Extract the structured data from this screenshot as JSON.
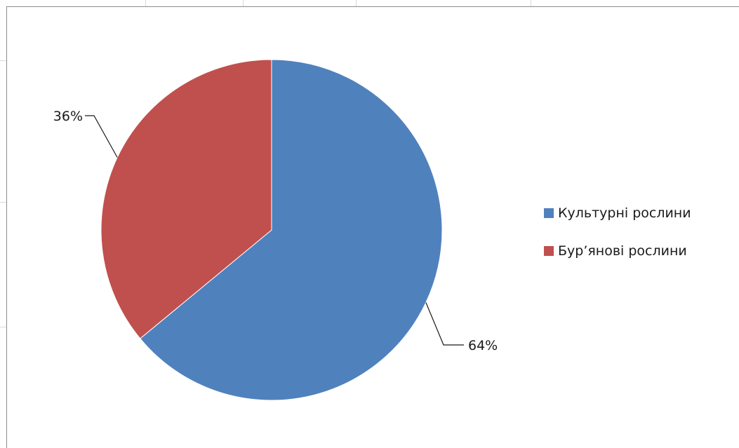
{
  "chart_data": {
    "type": "pie",
    "title": "",
    "categories": [
      "Культурні рослини",
      "Бур’янові рослини"
    ],
    "values": [
      64,
      36
    ],
    "labels": [
      "64%",
      "36%"
    ],
    "colors": [
      "#4F81BD",
      "#C0504D"
    ],
    "start_angle": "12 o'clock, clockwise",
    "legend_position": "right"
  },
  "legend": {
    "items": [
      {
        "label": "Культурні рослини",
        "color": "#4F81BD"
      },
      {
        "label": "Бур’янові рослини",
        "color": "#C0504D"
      }
    ]
  }
}
